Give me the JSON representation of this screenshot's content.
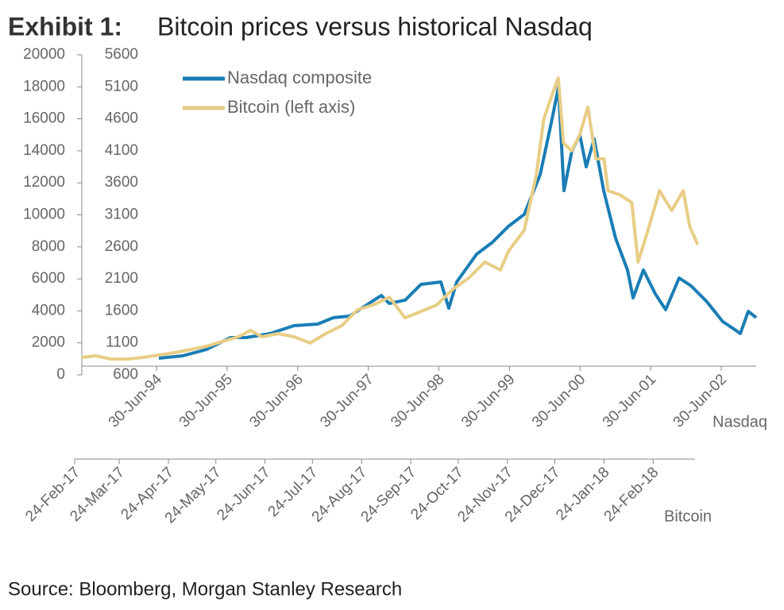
{
  "chart_data": {
    "type": "line",
    "exhibit_label": "Exhibit 1:",
    "title": "Bitcoin prices versus historical Nasdaq",
    "source": "Source: Bloomberg, Morgan Stanley Research",
    "xlabel": "Nasdaq",
    "x2label": "Bitcoin",
    "xlim": [
      1993.442,
      2002.995
    ],
    "xticks": [
      {
        "value": 1994.5,
        "label": "30-Jun-94"
      },
      {
        "value": 1995.5,
        "label": "30-Jun-95"
      },
      {
        "value": 1996.5,
        "label": "30-Jun-96"
      },
      {
        "value": 1997.5,
        "label": "30-Jun-97"
      },
      {
        "value": 1998.5,
        "label": "30-Jun-98"
      },
      {
        "value": 1999.5,
        "label": "30-Jun-99"
      },
      {
        "value": 2000.5,
        "label": "30-Jun-00"
      },
      {
        "value": 2001.5,
        "label": "30-Jun-01"
      },
      {
        "value": 2002.5,
        "label": "30-Jun-02"
      }
    ],
    "x2lim": [
      2017.148,
      2018.23
    ],
    "x2ticks": [
      {
        "value": 2017.148,
        "label": "24-Feb-17"
      },
      {
        "value": 2017.225,
        "label": "24-Mar-17"
      },
      {
        "value": 2017.31,
        "label": "24-Apr-17"
      },
      {
        "value": 2017.392,
        "label": "24-May-17"
      },
      {
        "value": 2017.477,
        "label": "24-Jun-17"
      },
      {
        "value": 2017.559,
        "label": "24-Jul-17"
      },
      {
        "value": 2017.644,
        "label": "24-Aug-17"
      },
      {
        "value": 2017.729,
        "label": "24-Sep-17"
      },
      {
        "value": 2017.811,
        "label": "24-Oct-17"
      },
      {
        "value": 2017.896,
        "label": "24-Nov-17"
      },
      {
        "value": 2017.978,
        "label": "24-Dec-17"
      },
      {
        "value": 2018.063,
        "label": "24-Jan-18"
      },
      {
        "value": 2018.148,
        "label": "24-Feb-18"
      }
    ],
    "ylim": [
      0,
      20000
    ],
    "yticks": [
      0,
      2000,
      4000,
      6000,
      8000,
      10000,
      12000,
      14000,
      16000,
      18000,
      20000
    ],
    "y2lim": [
      600,
      5600
    ],
    "y2ticks": [
      600,
      1100,
      1600,
      2100,
      2600,
      3100,
      3600,
      4100,
      4600,
      5100,
      5600
    ],
    "legend": "upper left",
    "series": [
      {
        "name": "Nasdaq composite",
        "color": "#1a7db5",
        "axis": "y2",
        "xaxis": "x",
        "x": [
          1994.534,
          1994.871,
          1995.209,
          1995.546,
          1995.771,
          1996.109,
          1996.447,
          1996.784,
          1997.009,
          1997.234,
          1997.459,
          1997.684,
          1997.797,
          1998.022,
          1998.247,
          1998.528,
          1998.641,
          1998.753,
          1999.034,
          1999.259,
          1999.484,
          1999.709,
          1999.934,
          2000.103,
          2000.193,
          2000.272,
          2000.384,
          2000.497,
          2000.587,
          2000.7,
          2000.835,
          2001.003,
          2001.172,
          2001.251,
          2001.397,
          2001.566,
          2001.712,
          2001.904,
          2002.073,
          2002.297,
          2002.522,
          2002.691,
          2002.77,
          2002.883,
          2002.995
        ],
        "values": [
          861,
          898,
          997,
          1183,
          1183,
          1245,
          1369,
          1394,
          1494,
          1518,
          1680,
          1841,
          1717,
          1767,
          2015,
          2052,
          1642,
          2052,
          2486,
          2672,
          2920,
          3107,
          3727,
          4596,
          5092,
          3479,
          4100,
          4348,
          3851,
          4286,
          3479,
          2734,
          2238,
          1804,
          2238,
          1866,
          1618,
          2114,
          1990,
          1742,
          1431,
          1307,
          1245,
          1593,
          1494
        ]
      },
      {
        "name": "Bitcoin (left axis)",
        "color": "#e8cd85",
        "axis": "y",
        "xaxis": "x2",
        "x": [
          2017.16,
          2017.184,
          2017.211,
          2017.239,
          2017.266,
          2017.294,
          2017.321,
          2017.349,
          2017.376,
          2017.403,
          2017.431,
          2017.452,
          2017.472,
          2017.5,
          2017.527,
          2017.555,
          2017.582,
          2017.61,
          2017.637,
          2017.664,
          2017.692,
          2017.719,
          2017.747,
          2017.774,
          2017.802,
          2017.829,
          2017.857,
          2017.884,
          2017.898,
          2017.925,
          2017.946,
          2017.959,
          2017.973,
          2017.984,
          2017.993,
          2018.007,
          2018.021,
          2018.035,
          2018.049,
          2018.063,
          2018.07,
          2018.09,
          2018.111,
          2018.122,
          2018.139,
          2018.159,
          2018.18,
          2018.2,
          2018.211,
          2018.225
        ],
        "values": [
          1090,
          1190,
          990,
          990,
          1090,
          1240,
          1390,
          1590,
          1790,
          2080,
          2380,
          2780,
          2380,
          2580,
          2380,
          1990,
          2580,
          3080,
          4070,
          4370,
          4860,
          3570,
          3970,
          4370,
          5360,
          6050,
          7050,
          6550,
          7740,
          9030,
          12500,
          15980,
          17470,
          18560,
          14490,
          14000,
          14990,
          16720,
          13500,
          13500,
          11510,
          11260,
          10770,
          7050,
          9030,
          11510,
          10270,
          11510,
          9280,
          8140
        ]
      }
    ]
  }
}
